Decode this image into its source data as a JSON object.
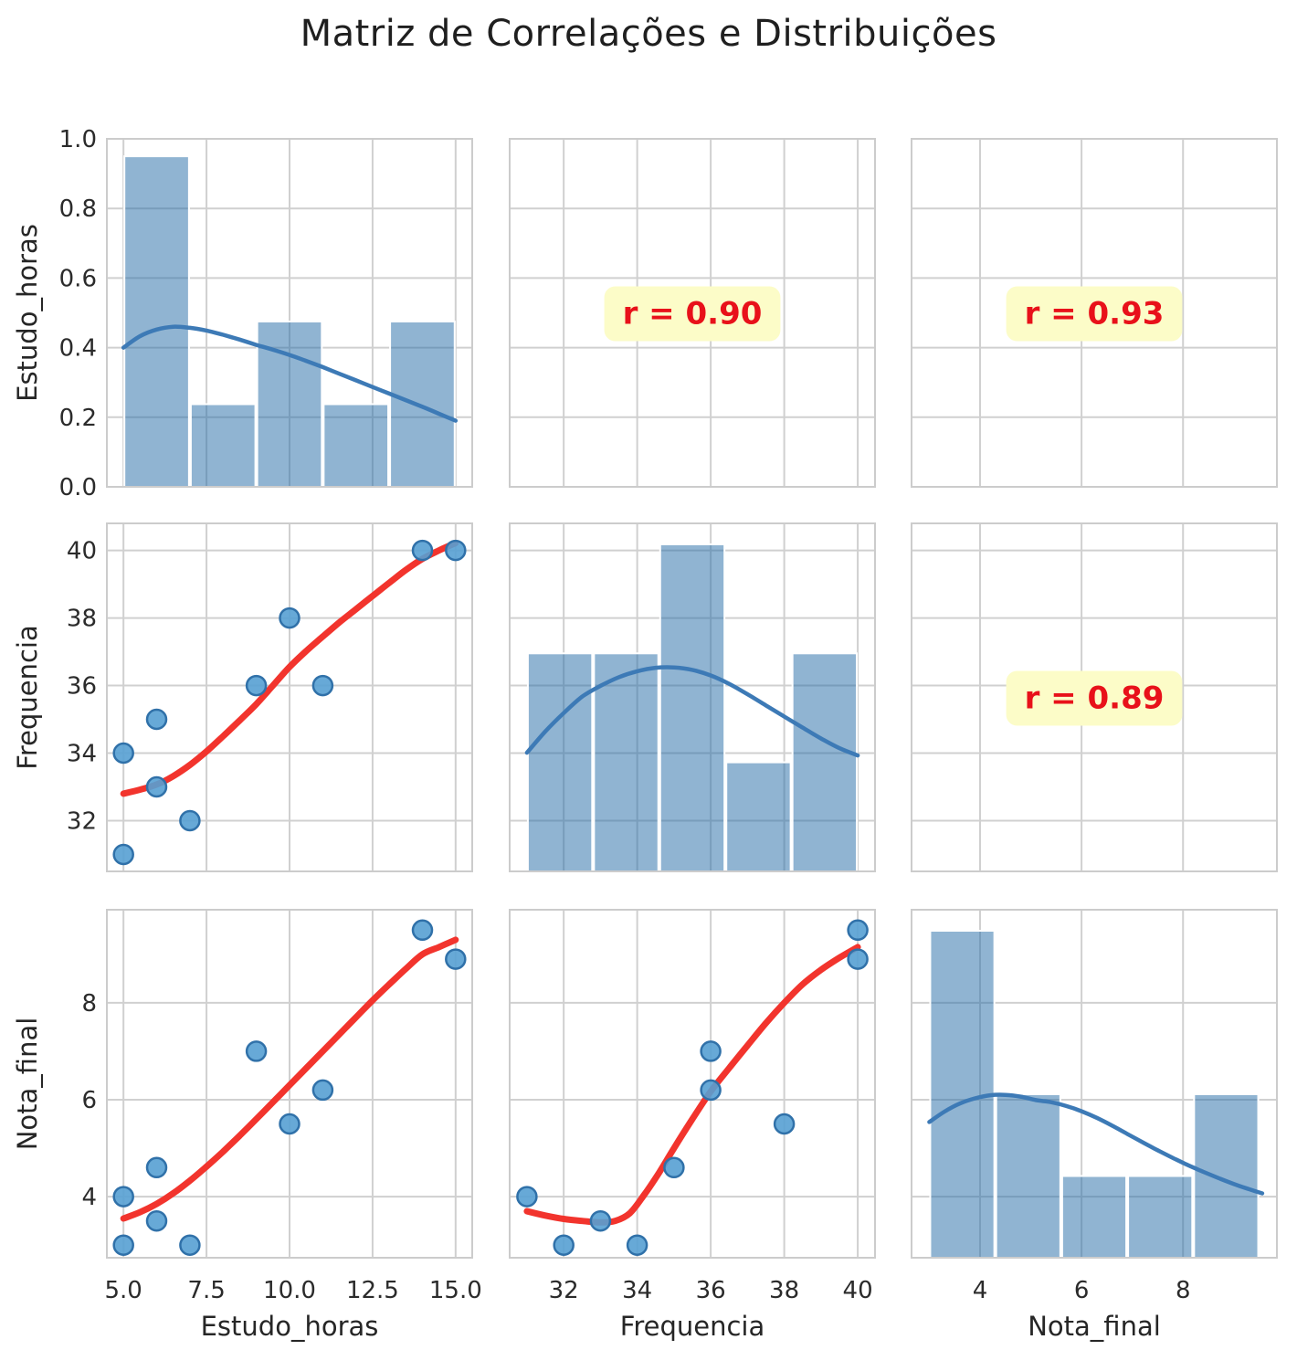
{
  "title": "Matriz de Correlações e Distribuições",
  "colors": {
    "background": "#ffffff",
    "grid_line": "#d0d0d0",
    "spine": "#cccccc",
    "bar_fill": "rgba(33,106,165,0.5)",
    "bar_edge": "#ffffff",
    "kde_line": "#3d7ab6",
    "dot_fill": "#57a0d3",
    "dot_edge": "#3071a9",
    "reg_line": "#f2342d",
    "corr_text": "#e8111a",
    "corr_bg": "#fcfcc8",
    "tick_text": "#2b2b2b",
    "label_text": "#262626",
    "title_text": "#1f1f1f"
  },
  "chart_data": {
    "type": "pairplot",
    "title": "Matriz de Correlações e Distribuições",
    "variables": [
      "Estudo_horas",
      "Frequencia",
      "Nota_final"
    ],
    "records": [
      {
        "Estudo_horas": 5,
        "Frequencia": 31,
        "Nota_final": 4.0
      },
      {
        "Estudo_horas": 5,
        "Frequencia": 34,
        "Nota_final": 3.0
      },
      {
        "Estudo_horas": 6,
        "Frequencia": 33,
        "Nota_final": 3.5
      },
      {
        "Estudo_horas": 6,
        "Frequencia": 35,
        "Nota_final": 4.6
      },
      {
        "Estudo_horas": 7,
        "Frequencia": 32,
        "Nota_final": 3.0
      },
      {
        "Estudo_horas": 9,
        "Frequencia": 36,
        "Nota_final": 7.0
      },
      {
        "Estudo_horas": 10,
        "Frequencia": 38,
        "Nota_final": 5.5
      },
      {
        "Estudo_horas": 11,
        "Frequencia": 36,
        "Nota_final": 6.2
      },
      {
        "Estudo_horas": 14,
        "Frequencia": 40,
        "Nota_final": 9.5
      },
      {
        "Estudo_horas": 15,
        "Frequencia": 40,
        "Nota_final": 8.9
      }
    ],
    "correlations": {
      "estudo_vs_frequencia": "r = 0.90",
      "estudo_vs_nota": "r = 0.93",
      "frequencia_vs_nota": "r = 0.89"
    },
    "grid": {
      "rows": [
        {
          "label": "Estudo_horas",
          "lim": [
            0,
            1.0
          ],
          "ticks": [
            0.0,
            0.2,
            0.4,
            0.6,
            0.8,
            1.0
          ],
          "tick_labels": [
            "0.0",
            "0.2",
            "0.4",
            "0.6",
            "0.8",
            "1.0"
          ]
        },
        {
          "label": "Frequencia",
          "lim": [
            30.5,
            40.8
          ],
          "ticks": [
            32,
            34,
            36,
            38,
            40
          ],
          "tick_labels": [
            "32",
            "34",
            "36",
            "38",
            "40"
          ]
        },
        {
          "label": "Nota_final",
          "lim": [
            2.74,
            9.92
          ],
          "ticks": [
            4,
            6,
            8
          ],
          "tick_labels": [
            "4",
            "6",
            "8"
          ]
        }
      ],
      "cols": [
        {
          "label": "Estudo_horas",
          "lim": [
            4.5,
            15.5
          ],
          "ticks": [
            5.0,
            7.5,
            10.0,
            12.5,
            15.0
          ],
          "tick_labels": [
            "5.0",
            "7.5",
            "10.0",
            "12.5",
            "15.0"
          ]
        },
        {
          "label": "Frequencia",
          "lim": [
            30.53,
            40.47
          ],
          "ticks": [
            32,
            34,
            36,
            38,
            40
          ],
          "tick_labels": [
            "32",
            "34",
            "36",
            "38",
            "40"
          ]
        },
        {
          "label": "Nota_final",
          "lim": [
            2.65,
            9.85
          ],
          "ticks": [
            4,
            6,
            8
          ],
          "tick_labels": [
            "4",
            "6",
            "8"
          ]
        }
      ]
    },
    "panels": [
      {
        "row": 0,
        "col": 0,
        "type": "hist_kde",
        "variable": "Estudo_horas",
        "bin_edges": [
          5,
          7,
          9,
          11,
          13,
          15
        ],
        "counts": [
          4,
          1,
          2,
          1,
          2
        ],
        "bar_height_frac": [
          0.95,
          0.2375,
          0.475,
          0.2375,
          0.475
        ],
        "kde_frac": [
          [
            5,
            0.4
          ],
          [
            5.5,
            0.433
          ],
          [
            6,
            0.452
          ],
          [
            6.5,
            0.46
          ],
          [
            7,
            0.457
          ],
          [
            7.5,
            0.449
          ],
          [
            8,
            0.437
          ],
          [
            8.5,
            0.423
          ],
          [
            9,
            0.408
          ],
          [
            9.5,
            0.394
          ],
          [
            10,
            0.379
          ],
          [
            10.5,
            0.362
          ],
          [
            11,
            0.344
          ],
          [
            11.5,
            0.325
          ],
          [
            12,
            0.306
          ],
          [
            12.5,
            0.287
          ],
          [
            13,
            0.268
          ],
          [
            13.5,
            0.249
          ],
          [
            14,
            0.23
          ],
          [
            14.5,
            0.21
          ],
          [
            15,
            0.19
          ]
        ]
      },
      {
        "row": 0,
        "col": 1,
        "type": "corr",
        "label": "r = 0.90",
        "pair": "Estudo_horas vs Frequencia"
      },
      {
        "row": 0,
        "col": 2,
        "type": "corr",
        "label": "r = 0.93",
        "pair": "Estudo_horas vs Nota_final"
      },
      {
        "row": 1,
        "col": 0,
        "type": "scatter_reg",
        "x_var": "Estudo_horas",
        "y_var": "Frequencia",
        "points": [
          [
            5,
            34
          ],
          [
            5,
            31
          ],
          [
            6,
            35
          ],
          [
            6,
            33
          ],
          [
            7,
            32
          ],
          [
            9,
            36
          ],
          [
            10,
            38
          ],
          [
            11,
            36
          ],
          [
            14,
            40
          ],
          [
            15,
            40
          ]
        ],
        "reg_line": [
          [
            5,
            32.8
          ],
          [
            5.5,
            32.92
          ],
          [
            6,
            33.07
          ],
          [
            6.5,
            33.32
          ],
          [
            7,
            33.65
          ],
          [
            7.5,
            34.05
          ],
          [
            8,
            34.5
          ],
          [
            8.5,
            34.97
          ],
          [
            9,
            35.45
          ],
          [
            9.5,
            36.0
          ],
          [
            10,
            36.55
          ],
          [
            10.5,
            37.02
          ],
          [
            11,
            37.45
          ],
          [
            11.5,
            37.87
          ],
          [
            12,
            38.26
          ],
          [
            12.5,
            38.65
          ],
          [
            13,
            39.04
          ],
          [
            13.5,
            39.42
          ],
          [
            14,
            39.75
          ],
          [
            14.5,
            40.0
          ],
          [
            15,
            40.22
          ]
        ]
      },
      {
        "row": 1,
        "col": 1,
        "type": "hist_kde",
        "variable": "Frequencia",
        "bin_edges": [
          31,
          32.8,
          34.6,
          36.4,
          38.2,
          40
        ],
        "counts": [
          2,
          2,
          3,
          1,
          2
        ],
        "bar_height_frac": [
          0.6266,
          0.6266,
          0.94,
          0.3133,
          0.6266
        ],
        "kde_frac": [
          [
            31,
            0.341
          ],
          [
            31.5,
            0.402
          ],
          [
            32,
            0.455
          ],
          [
            32.5,
            0.502
          ],
          [
            33,
            0.533
          ],
          [
            33.5,
            0.558
          ],
          [
            34,
            0.575
          ],
          [
            34.5,
            0.585
          ],
          [
            35,
            0.586
          ],
          [
            35.5,
            0.579
          ],
          [
            36,
            0.563
          ],
          [
            36.5,
            0.539
          ],
          [
            37,
            0.509
          ],
          [
            37.5,
            0.477
          ],
          [
            38,
            0.445
          ],
          [
            38.5,
            0.413
          ],
          [
            39,
            0.382
          ],
          [
            39.5,
            0.354
          ],
          [
            40,
            0.333
          ]
        ]
      },
      {
        "row": 1,
        "col": 2,
        "type": "corr",
        "label": "r = 0.89",
        "pair": "Frequencia vs Nota_final"
      },
      {
        "row": 2,
        "col": 0,
        "type": "scatter_reg",
        "x_var": "Estudo_horas",
        "y_var": "Nota_final",
        "points": [
          [
            5,
            4.0
          ],
          [
            5,
            3.0
          ],
          [
            6,
            4.6
          ],
          [
            6,
            3.5
          ],
          [
            7,
            3.0
          ],
          [
            9,
            7.0
          ],
          [
            10,
            5.5
          ],
          [
            11,
            6.2
          ],
          [
            14,
            9.5
          ],
          [
            15,
            8.9
          ]
        ],
        "reg_line": [
          [
            5,
            3.55
          ],
          [
            5.5,
            3.68
          ],
          [
            6,
            3.85
          ],
          [
            6.5,
            4.07
          ],
          [
            7,
            4.33
          ],
          [
            7.5,
            4.62
          ],
          [
            8,
            4.93
          ],
          [
            8.5,
            5.26
          ],
          [
            9,
            5.6
          ],
          [
            9.5,
            5.95
          ],
          [
            10,
            6.3
          ],
          [
            10.5,
            6.65
          ],
          [
            11,
            7.0
          ],
          [
            11.5,
            7.35
          ],
          [
            12,
            7.7
          ],
          [
            12.5,
            8.05
          ],
          [
            13,
            8.38
          ],
          [
            13.5,
            8.7
          ],
          [
            14,
            9.0
          ],
          [
            14.5,
            9.15
          ],
          [
            15,
            9.3
          ]
        ]
      },
      {
        "row": 2,
        "col": 1,
        "type": "scatter_reg",
        "x_var": "Frequencia",
        "y_var": "Nota_final",
        "points": [
          [
            31,
            4.0
          ],
          [
            34,
            3.0
          ],
          [
            35,
            4.6
          ],
          [
            33,
            3.5
          ],
          [
            32,
            3.0
          ],
          [
            36,
            7.0
          ],
          [
            38,
            5.5
          ],
          [
            36,
            6.2
          ],
          [
            40,
            9.5
          ],
          [
            40,
            8.9
          ]
        ],
        "reg_line": [
          [
            31,
            3.7
          ],
          [
            31.5,
            3.61
          ],
          [
            32,
            3.54
          ],
          [
            32.5,
            3.5
          ],
          [
            33,
            3.47
          ],
          [
            33.4,
            3.5
          ],
          [
            33.8,
            3.66
          ],
          [
            34.2,
            4.05
          ],
          [
            34.6,
            4.5
          ],
          [
            35,
            5.0
          ],
          [
            35.5,
            5.6
          ],
          [
            36,
            6.17
          ],
          [
            36.5,
            6.65
          ],
          [
            37,
            7.12
          ],
          [
            37.5,
            7.58
          ],
          [
            38,
            8.0
          ],
          [
            38.5,
            8.38
          ],
          [
            39,
            8.68
          ],
          [
            39.5,
            8.93
          ],
          [
            40,
            9.15
          ]
        ]
      },
      {
        "row": 2,
        "col": 2,
        "type": "hist_kde",
        "variable": "Nota_final",
        "bin_edges": [
          3.0,
          4.3,
          5.6,
          6.9,
          8.2,
          9.5
        ],
        "counts": [
          4,
          2,
          1,
          1,
          2
        ],
        "bar_height_frac": [
          0.9396,
          0.4698,
          0.2349,
          0.2349,
          0.4698
        ],
        "kde_frac": [
          [
            3.0,
            0.39
          ],
          [
            3.3,
            0.42
          ],
          [
            3.6,
            0.443
          ],
          [
            3.9,
            0.458
          ],
          [
            4.2,
            0.467
          ],
          [
            4.5,
            0.468
          ],
          [
            4.8,
            0.463
          ],
          [
            5.1,
            0.453
          ],
          [
            5.4,
            0.447
          ],
          [
            5.7,
            0.436
          ],
          [
            6.0,
            0.421
          ],
          [
            6.3,
            0.402
          ],
          [
            6.6,
            0.38
          ],
          [
            6.9,
            0.356
          ],
          [
            7.2,
            0.332
          ],
          [
            7.5,
            0.309
          ],
          [
            7.8,
            0.287
          ],
          [
            8.1,
            0.266
          ],
          [
            8.4,
            0.247
          ],
          [
            8.7,
            0.229
          ],
          [
            9.0,
            0.212
          ],
          [
            9.3,
            0.197
          ],
          [
            9.56,
            0.185
          ]
        ]
      }
    ]
  }
}
